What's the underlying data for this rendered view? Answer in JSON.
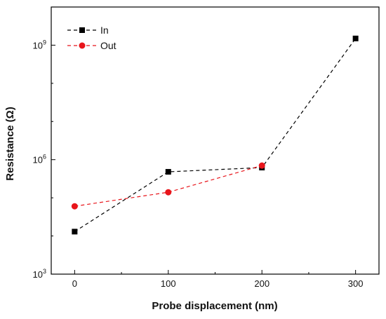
{
  "chart_data": {
    "type": "line",
    "xlabel": "Probe displacement (nm)",
    "ylabel": "Resistance (Ω)",
    "yscale": "log",
    "xlim": [
      -25,
      325
    ],
    "ylim": [
      1000,
      10000000000
    ],
    "x_ticks": [
      0,
      100,
      200,
      300
    ],
    "x_tick_labels": [
      "0",
      "100",
      "200",
      "300"
    ],
    "y_major_ticks": [
      1000,
      1000000,
      1000000000
    ],
    "y_tick_labels": [
      {
        "base": "10",
        "exp": "3"
      },
      {
        "base": "10",
        "exp": "6"
      },
      {
        "base": "10",
        "exp": "9"
      }
    ],
    "grid": false,
    "legend_position": "top-left",
    "series": [
      {
        "name": "In",
        "color": "#000000",
        "marker": "square",
        "line": "dashed",
        "x": [
          0,
          100,
          200,
          300
        ],
        "y": [
          13000,
          480000,
          620000,
          1500000000
        ]
      },
      {
        "name": "Out",
        "color": "#e8151b",
        "marker": "circle",
        "line": "dashed",
        "x": [
          0,
          100,
          200,
          300
        ],
        "y": [
          60000,
          140000,
          700000,
          null
        ]
      }
    ]
  }
}
